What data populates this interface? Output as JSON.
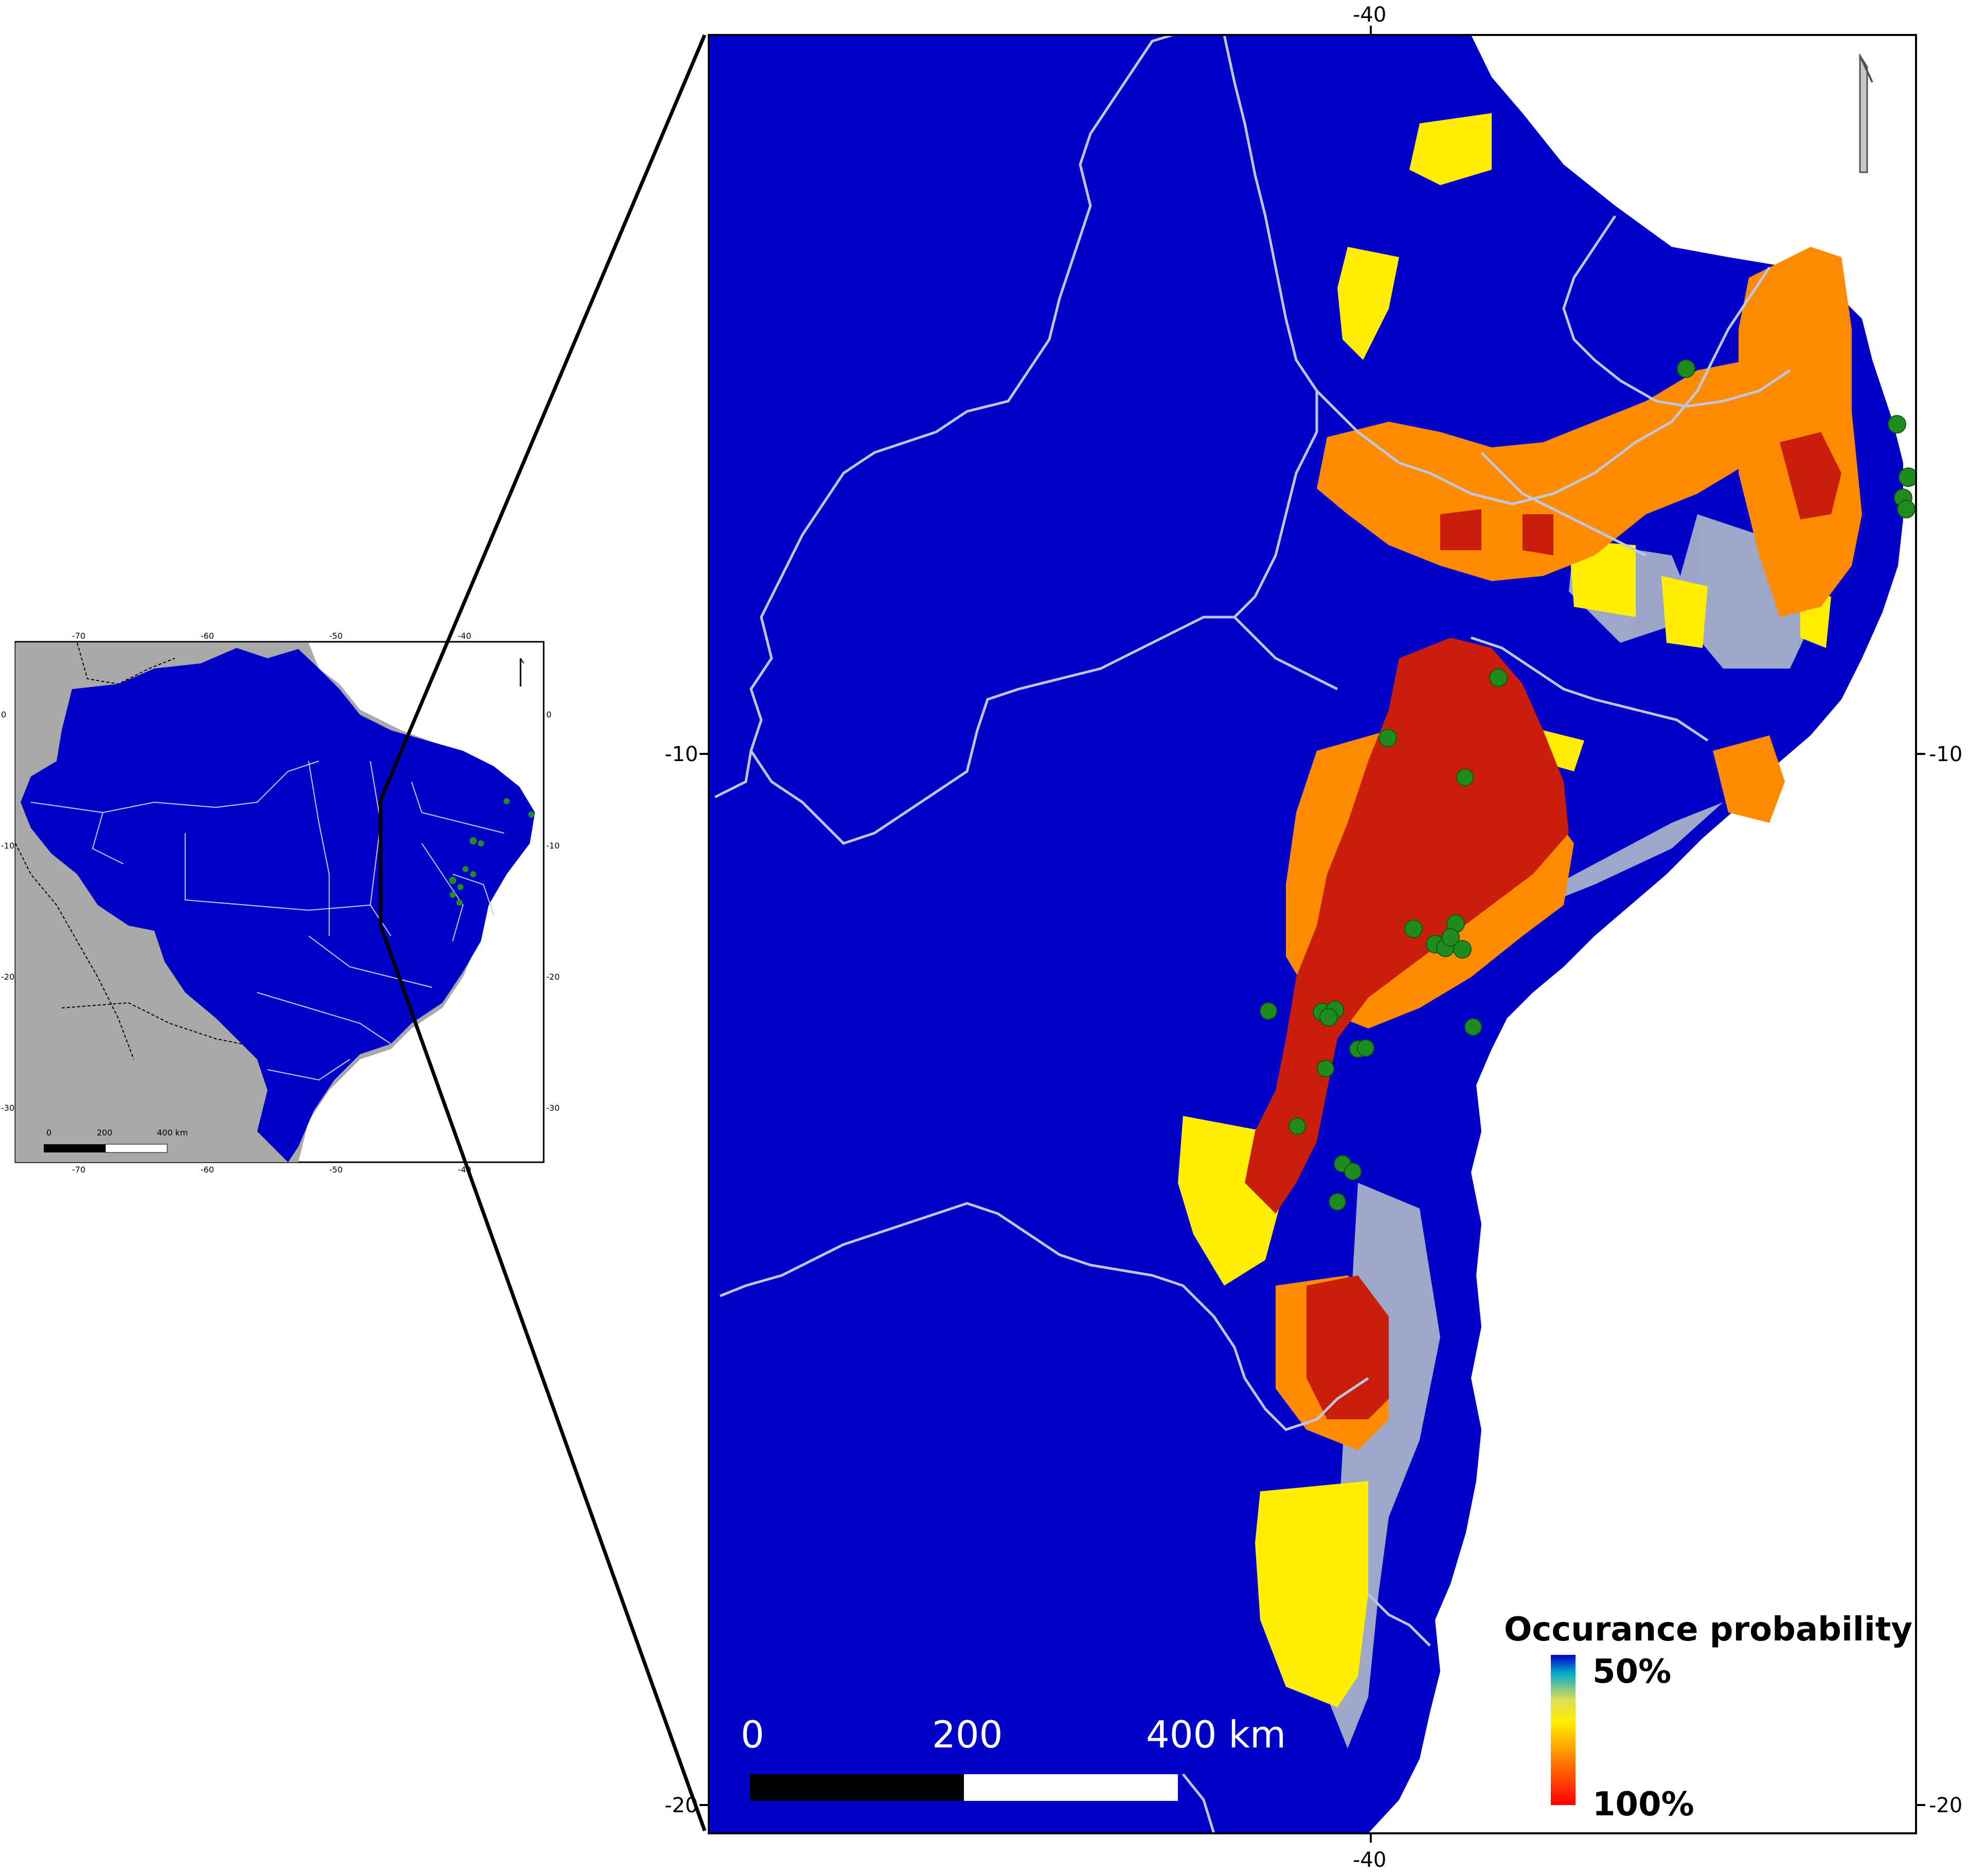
{
  "inset_map": {
    "top_ticks": [
      "-70",
      "-60",
      "-50",
      "-40"
    ],
    "bottom_ticks": [
      "-70",
      "-60",
      "-50",
      "-40"
    ],
    "left_ticks": [
      "0",
      "-10",
      "-20",
      "-30"
    ],
    "right_ticks": [
      "0",
      "-10",
      "-20",
      "-30"
    ],
    "scale_labels": [
      "0",
      "200",
      "400 km"
    ],
    "colors": {
      "land_in_range": "#0000c8",
      "outside": "#a9a9a9",
      "boundary": "#bfc6e0"
    }
  },
  "main_map": {
    "top_tick": "-40",
    "bottom_tick": "-40",
    "left_ticks": [
      "-10",
      "-20"
    ],
    "right_ticks": [
      "-10",
      "-20"
    ],
    "scale_labels": [
      "0",
      "200",
      "400 km"
    ],
    "legend": {
      "title": "Occurance probability",
      "top_label": "50%",
      "bottom_label": "100%"
    },
    "colors": {
      "background": "#0000c8",
      "high": "#c81e0a",
      "mid": "#ff8c00",
      "low": "#ffee00",
      "fringe": "#b8c4c8",
      "occurrence_points": "#1e8c1e"
    }
  }
}
